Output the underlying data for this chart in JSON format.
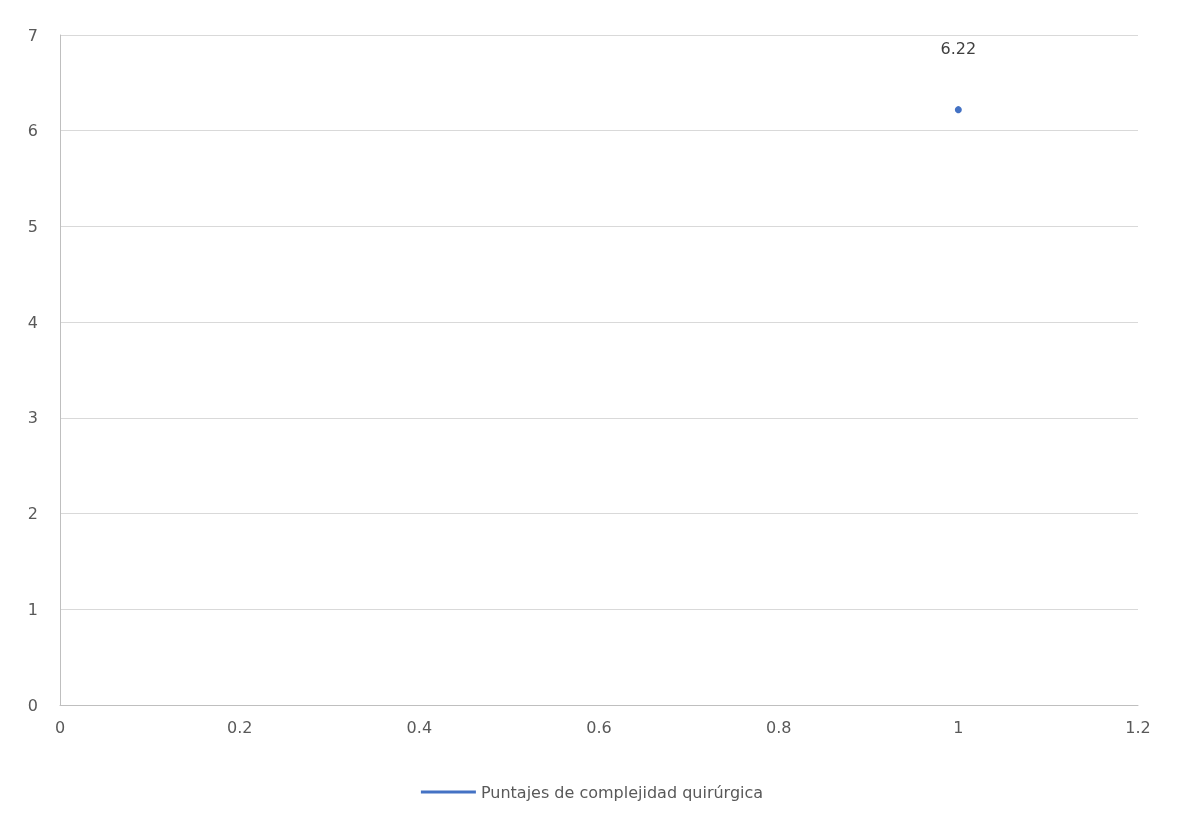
{
  "chart_data": {
    "type": "line",
    "x": [
      1
    ],
    "series": [
      {
        "name": "Puntajes de complejidad quirúrgica",
        "color": "#4472c4",
        "values": [
          6.22
        ]
      }
    ],
    "xlim": [
      0,
      1.2
    ],
    "xticks": [
      0,
      0.2,
      0.4,
      0.6,
      0.8,
      1,
      1.2
    ],
    "ylim": [
      0,
      7
    ],
    "yticks": [
      0,
      1,
      2,
      3,
      4,
      5,
      6,
      7
    ],
    "grid": "y",
    "legend": "bottom",
    "data_labels": true,
    "marker": "circle"
  }
}
